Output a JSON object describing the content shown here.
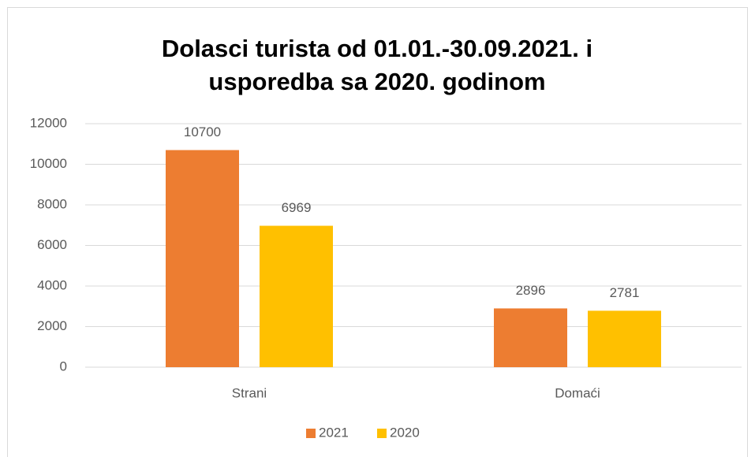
{
  "chart_data": {
    "type": "bar",
    "title": [
      "Dolasci turista od 01.01.-30.09.2021. i",
      "usporedba sa 2020. godinom"
    ],
    "categories": [
      "Strani",
      "Domaći"
    ],
    "series": [
      {
        "name": "2021",
        "color": "#ED7D31",
        "values": [
          10700,
          2896
        ]
      },
      {
        "name": "2020",
        "color": "#FFC000",
        "values": [
          6969,
          2781
        ]
      }
    ],
    "ylim": [
      0,
      12000
    ],
    "yticks": [
      0,
      2000,
      4000,
      6000,
      8000,
      10000,
      12000
    ],
    "grid": true,
    "legend": "bottom"
  }
}
